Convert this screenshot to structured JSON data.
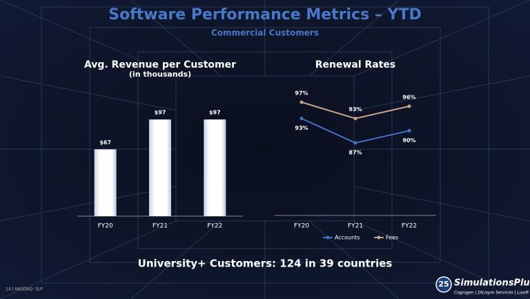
{
  "header": {
    "title": "Software Performance Metrics – YTD",
    "subtitle": "Commercial Customers"
  },
  "chart_data": [
    {
      "type": "bar",
      "title": "Avg. Revenue per Customer",
      "subtitle": "(in thousands)",
      "categories": [
        "FY20",
        "FY21",
        "FY22"
      ],
      "values": [
        67,
        97,
        97
      ],
      "value_labels": [
        "$67",
        "$97",
        "$97"
      ],
      "color": "#ffffff"
    },
    {
      "type": "line",
      "title": "Renewal Rates",
      "categories": [
        "FY20",
        "FY21",
        "FY22"
      ],
      "series": [
        {
          "name": "Accounts",
          "color": "#4472c4",
          "values": [
            93,
            87,
            90
          ],
          "value_labels": [
            "93%",
            "87%",
            "90%"
          ]
        },
        {
          "name": "Fees",
          "color": "#c9a48a",
          "values": [
            97,
            93,
            96
          ],
          "value_labels": [
            "97%",
            "93%",
            "96%"
          ]
        }
      ],
      "legend": "bottom"
    }
  ],
  "footer": {
    "note": "University+ Customers: 124 in 39 countries",
    "page": "14 | NASDAQ: SLP",
    "logo": {
      "badge": "25",
      "name": "SimulationsPlus",
      "tagline": "Cognigen | DILIsym Services | Lixoft"
    }
  }
}
